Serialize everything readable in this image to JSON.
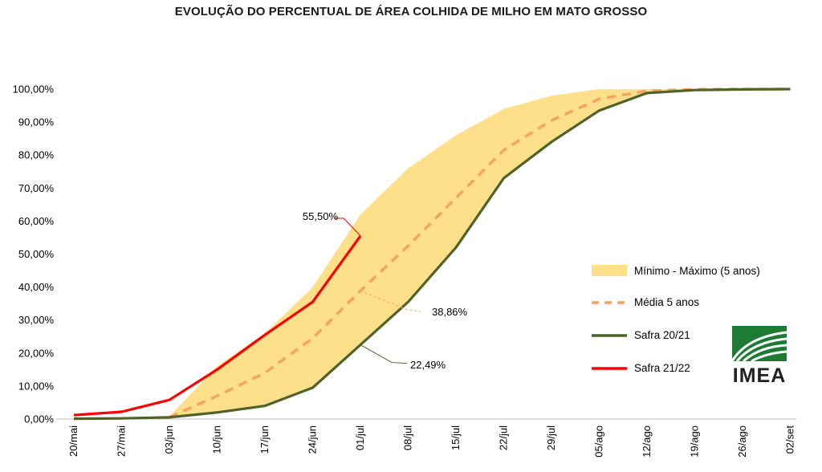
{
  "chart_data": {
    "type": "line",
    "title": "EVOLUÇÃO DO PERCENTUAL DE ÁREA COLHIDA DE MILHO EM MATO GROSSO",
    "xlabel": "",
    "ylabel": "",
    "categories": [
      "20/mai",
      "27/mai",
      "03/jun",
      "10/jun",
      "17/jun",
      "24/jun",
      "01/jul",
      "08/jul",
      "15/jul",
      "22/jul",
      "29/jul",
      "05/ago",
      "12/ago",
      "19/ago",
      "26/ago",
      "02/set"
    ],
    "ylim": [
      0,
      100
    ],
    "yticks": [
      "0,00%",
      "10,00%",
      "20,00%",
      "30,00%",
      "40,00%",
      "50,00%",
      "60,00%",
      "70,00%",
      "80,00%",
      "90,00%",
      "100,00%"
    ],
    "grid": false,
    "legend_position": "right",
    "band": {
      "name": "Mínimo - Máximo (5 anos)",
      "color": "#FFE08A",
      "min": [
        null,
        null,
        0.3,
        2,
        4,
        9.5,
        22.5,
        36,
        52,
        73,
        84,
        93.5,
        98.8,
        99.7,
        100,
        100
      ],
      "max": [
        null,
        null,
        0.8,
        16,
        26,
        40,
        62,
        76,
        86,
        94,
        98,
        100,
        100,
        100,
        100,
        100
      ]
    },
    "series": [
      {
        "name": "Média 5 anos",
        "color": "#F4A460",
        "style": "dashed",
        "values": [
          null,
          null,
          0.5,
          7,
          14,
          24.5,
          38.86,
          52.5,
          67,
          81.5,
          90.5,
          97,
          99.5,
          99.9,
          100,
          100
        ]
      },
      {
        "name": "Safra 20/21",
        "color": "#4F6228",
        "style": "solid",
        "values": [
          0.1,
          0.2,
          0.5,
          2,
          4,
          9.5,
          22.49,
          35.5,
          52,
          73,
          84,
          93.5,
          98.8,
          99.7,
          99.9,
          100
        ]
      },
      {
        "name": "Safra 21/22",
        "color": "#FF0000",
        "style": "solid",
        "values": [
          1.2,
          2.2,
          5.8,
          15,
          25.5,
          35.5,
          55.5,
          null,
          null,
          null,
          null,
          null,
          null,
          null,
          null,
          null
        ]
      }
    ],
    "annotations": [
      {
        "text": "55,50%",
        "series": "Safra 21/22",
        "index": 6
      },
      {
        "text": "38,86%",
        "series": "Média 5 anos",
        "index": 6
      },
      {
        "text": "22,49%",
        "series": "Safra 20/21",
        "index": 6
      }
    ]
  },
  "logo": {
    "text": "IMEA",
    "color": "#1E7B34"
  }
}
